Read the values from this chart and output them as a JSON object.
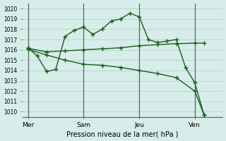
{
  "xlabel": "Pression niveau de la mer( hPa )",
  "ylim": [
    1009.5,
    1020.5
  ],
  "yticks": [
    1010,
    1011,
    1012,
    1013,
    1014,
    1015,
    1016,
    1017,
    1018,
    1019,
    1020
  ],
  "xtick_labels": [
    "Mer",
    "Sam",
    "Jeu",
    "Ven"
  ],
  "xtick_positions": [
    0,
    3,
    6,
    9
  ],
  "vline_color": "#556655",
  "vline_positions": [
    0,
    3,
    6,
    9
  ],
  "background_color": "#d6edea",
  "grid_color": "#b0cccc",
  "line_color": "#1a5c1a",
  "line_width": 1.0,
  "marker": "+",
  "marker_size": 4,
  "xlim": [
    -0.3,
    10.5
  ],
  "series1_x": [
    0,
    0.5,
    1,
    1.5,
    2,
    2.5,
    3,
    3.5,
    4,
    4.5,
    5,
    5.5,
    6,
    6.5,
    7,
    7.5,
    8,
    8.5,
    9,
    9.5
  ],
  "series1_y": [
    1016.2,
    1015.4,
    1013.9,
    1014.1,
    1017.3,
    1017.9,
    1018.2,
    1017.5,
    1018.0,
    1018.8,
    1019.0,
    1019.55,
    1019.2,
    1017.0,
    1016.7,
    1016.85,
    1017.0,
    1014.3,
    1012.8,
    1009.7
  ],
  "series2_x": [
    0,
    1,
    2,
    3,
    4,
    5,
    6,
    7,
    8,
    9,
    9.5
  ],
  "series2_y": [
    1016.15,
    1015.8,
    1015.9,
    1016.0,
    1016.1,
    1016.2,
    1016.4,
    1016.5,
    1016.6,
    1016.65,
    1016.65
  ],
  "series3_x": [
    0,
    1,
    2,
    3,
    4,
    5,
    6,
    7,
    8,
    9,
    9.5
  ],
  "series3_y": [
    1016.05,
    1015.5,
    1015.0,
    1014.6,
    1014.5,
    1014.3,
    1014.0,
    1013.7,
    1013.3,
    1012.0,
    1009.7
  ]
}
